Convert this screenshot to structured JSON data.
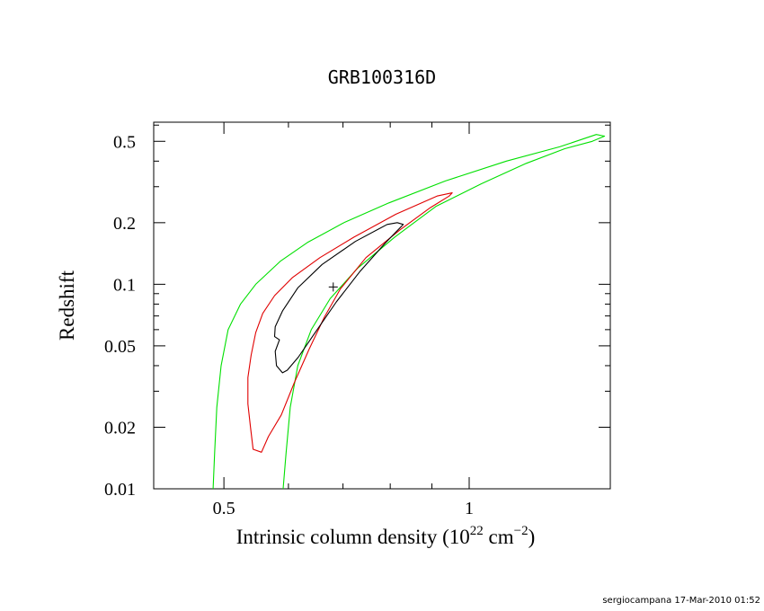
{
  "chart_data": {
    "type": "contour",
    "title": "GRB100316D",
    "xlabel": {
      "prefix": "Intrinsic column density (10",
      "exp1": "22",
      "middle": " cm",
      "exp2": "−2",
      "suffix": ")"
    },
    "ylabel": "Redshift",
    "xscale": "log",
    "yscale": "log",
    "xlim": [
      0.41,
      1.49
    ],
    "ylim": [
      0.01,
      0.62
    ],
    "xticks_major": [
      {
        "value": 0.5,
        "label": "0.5"
      },
      {
        "value": 1.0,
        "label": "1"
      }
    ],
    "xticks_minor": [
      0.6,
      0.7,
      0.8,
      0.9
    ],
    "yticks_major": [
      {
        "value": 0.01,
        "label": "0.01"
      },
      {
        "value": 0.02,
        "label": "0.02"
      },
      {
        "value": 0.05,
        "label": "0.05"
      },
      {
        "value": 0.1,
        "label": "0.1"
      },
      {
        "value": 0.2,
        "label": "0.2"
      },
      {
        "value": 0.5,
        "label": "0.5"
      }
    ],
    "yticks_minor": [
      0.03,
      0.04,
      0.06,
      0.07,
      0.08,
      0.09,
      0.3,
      0.4,
      0.6
    ],
    "best_fit": {
      "x": 0.681,
      "y": 0.097
    },
    "contours": [
      {
        "color": "#00e000",
        "closed": false,
        "points": [
          [
            0.485,
            0.01
          ],
          [
            0.487,
            0.015
          ],
          [
            0.49,
            0.025
          ],
          [
            0.496,
            0.04
          ],
          [
            0.506,
            0.06
          ],
          [
            0.524,
            0.08
          ],
          [
            0.547,
            0.1
          ],
          [
            0.587,
            0.13
          ],
          [
            0.633,
            0.16
          ],
          [
            0.702,
            0.2
          ],
          [
            0.797,
            0.25
          ],
          [
            0.935,
            0.32
          ],
          [
            1.111,
            0.4
          ],
          [
            1.291,
            0.47
          ],
          [
            1.432,
            0.54
          ],
          [
            1.466,
            0.53
          ],
          [
            1.416,
            0.5
          ],
          [
            1.31,
            0.46
          ],
          [
            1.175,
            0.39
          ],
          [
            1.035,
            0.31
          ],
          [
            0.91,
            0.24
          ],
          [
            0.81,
            0.17
          ],
          [
            0.73,
            0.12
          ],
          [
            0.675,
            0.085
          ],
          [
            0.64,
            0.06
          ],
          [
            0.616,
            0.04
          ],
          [
            0.603,
            0.025
          ],
          [
            0.596,
            0.015
          ],
          [
            0.591,
            0.01
          ]
        ]
      },
      {
        "color": "#e00000",
        "closed": true,
        "points": [
          [
            0.556,
            0.0151
          ],
          [
            0.543,
            0.0156
          ],
          [
            0.539,
            0.02
          ],
          [
            0.535,
            0.026
          ],
          [
            0.535,
            0.035
          ],
          [
            0.54,
            0.045
          ],
          [
            0.547,
            0.058
          ],
          [
            0.558,
            0.072
          ],
          [
            0.577,
            0.088
          ],
          [
            0.607,
            0.108
          ],
          [
            0.656,
            0.135
          ],
          [
            0.722,
            0.17
          ],
          [
            0.813,
            0.22
          ],
          [
            0.913,
            0.27
          ],
          [
            0.953,
            0.28
          ],
          [
            0.945,
            0.27
          ],
          [
            0.896,
            0.237
          ],
          [
            0.823,
            0.185
          ],
          [
            0.747,
            0.135
          ],
          [
            0.695,
            0.095
          ],
          [
            0.664,
            0.069
          ],
          [
            0.636,
            0.048
          ],
          [
            0.61,
            0.033
          ],
          [
            0.588,
            0.023
          ],
          [
            0.567,
            0.018
          ],
          [
            0.556,
            0.0151
          ]
        ]
      },
      {
        "color": "#000000",
        "closed": true,
        "points": [
          [
            0.59,
            0.0369
          ],
          [
            0.58,
            0.04
          ],
          [
            0.578,
            0.047
          ],
          [
            0.585,
            0.0535
          ],
          [
            0.577,
            0.0555
          ],
          [
            0.578,
            0.062
          ],
          [
            0.59,
            0.074
          ],
          [
            0.616,
            0.096
          ],
          [
            0.66,
            0.125
          ],
          [
            0.725,
            0.162
          ],
          [
            0.793,
            0.196
          ],
          [
            0.816,
            0.2
          ],
          [
            0.83,
            0.196
          ],
          [
            0.79,
            0.16
          ],
          [
            0.735,
            0.116
          ],
          [
            0.687,
            0.082
          ],
          [
            0.647,
            0.058
          ],
          [
            0.617,
            0.044
          ],
          [
            0.598,
            0.038
          ],
          [
            0.59,
            0.0369
          ]
        ]
      }
    ]
  },
  "footer": {
    "credit": "sergiocampana 17-Mar-2010 01:52"
  }
}
